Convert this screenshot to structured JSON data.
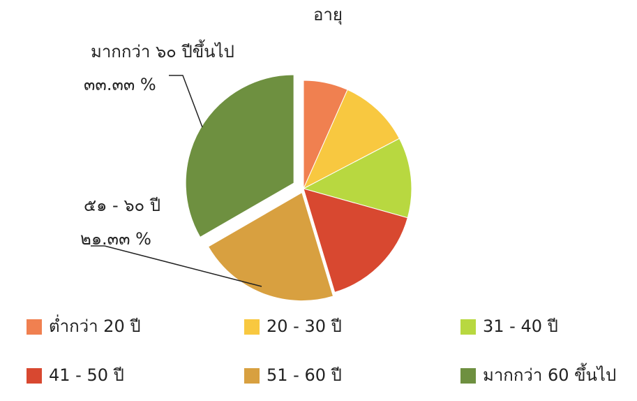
{
  "chart_data": {
    "type": "pie",
    "title": "อายุ",
    "categories": [
      "ต่ำกว่า 20 ปี",
      "20 - 30 ปี",
      "31 - 40 ปี",
      "41 - 50 ปี",
      "51 - 60 ปี",
      "มากกว่า 60 ขึ้นไป"
    ],
    "values": [
      6.67,
      10.67,
      12,
      16,
      21.33,
      33.33
    ],
    "value_labels": [
      null,
      null,
      null,
      null,
      "๒๑.๓๓ %",
      "๓๓.๓๓ %"
    ],
    "slice_labels": [
      null,
      null,
      null,
      null,
      "๕๑ - ๖๐ ปี",
      "มากกว่า ๖๐ ปีขึ้นไป"
    ],
    "colors": [
      "#f08050",
      "#f8c840",
      "#b8d840",
      "#d84830",
      "#d8a040",
      "#6e9040"
    ]
  }
}
